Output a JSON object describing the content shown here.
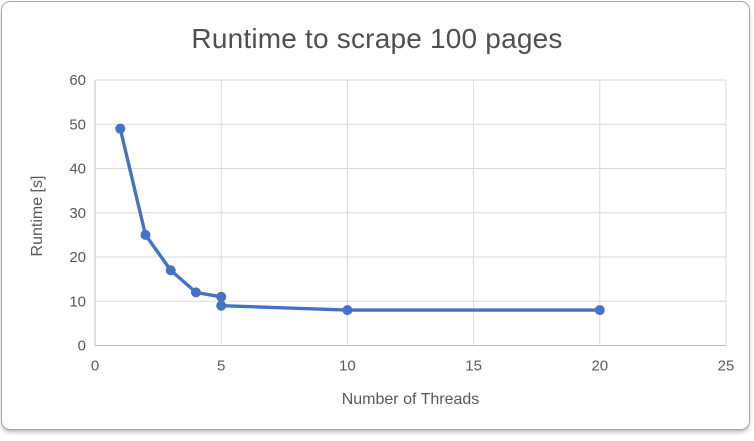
{
  "chart_data": {
    "type": "line",
    "title": "Runtime to scrape 100 pages",
    "xlabel": "Number of Threads",
    "ylabel": "Runtime [s]",
    "xlim": [
      0,
      25
    ],
    "ylim": [
      0,
      60
    ],
    "x_ticks": [
      0,
      5,
      10,
      15,
      20,
      25
    ],
    "y_ticks": [
      0,
      10,
      20,
      30,
      40,
      50,
      60
    ],
    "grid": true,
    "legend": "none",
    "series": [
      {
        "name": "Runtime",
        "color": "#4472C4",
        "marker": "circle",
        "points": [
          [
            1,
            49
          ],
          [
            2,
            25
          ],
          [
            3,
            17
          ],
          [
            4,
            12
          ],
          [
            5,
            11
          ],
          [
            5,
            9
          ],
          [
            10,
            8
          ],
          [
            20,
            8
          ]
        ]
      }
    ]
  },
  "theme": {
    "background": "#FFFFFF",
    "card_border": "#A8A8A8",
    "grid_color": "#D9D9D9",
    "axis_line_color": "#C0C0C0",
    "tick_label_color": "#595959",
    "title_color": "#4F4F4F"
  }
}
